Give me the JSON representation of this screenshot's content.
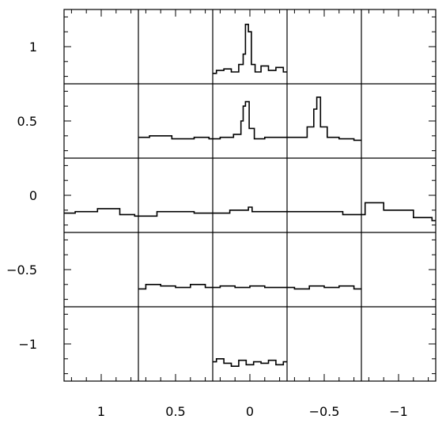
{
  "chart_data": {
    "type": "line",
    "title": "",
    "xlabel": "",
    "ylabel": "",
    "xlim": [
      1.25,
      -1.25
    ],
    "ylim": [
      -1.25,
      1.25
    ],
    "x_inverted": true,
    "x_ticks": [
      1,
      0.5,
      0,
      -0.5,
      -1
    ],
    "x_tick_labels": [
      "1",
      "0.5",
      "0",
      "−0.5",
      "−1"
    ],
    "y_ticks": [
      1,
      0.5,
      0,
      -0.5,
      -1
    ],
    "y_tick_labels": [
      "1",
      "0.5",
      "0",
      "−0.5",
      "−1"
    ],
    "grid": {
      "x_lines": [
        0.75,
        0.25,
        -0.25,
        -0.75
      ],
      "y_lines": [
        0.75,
        0.25,
        -0.25,
        -0.75
      ]
    },
    "series": [
      {
        "x": [
          0.25,
          0.2,
          0.15,
          0.1,
          0.05,
          0.04,
          0.02,
          0.0,
          -0.02,
          -0.05,
          -0.1,
          -0.15,
          -0.2,
          -0.25
        ],
        "y": [
          0.82,
          0.84,
          0.85,
          0.83,
          0.88,
          0.95,
          1.15,
          1.1,
          0.88,
          0.83,
          0.87,
          0.84,
          0.86,
          0.83
        ]
      },
      {
        "x": [
          0.75,
          0.6,
          0.45,
          0.3,
          0.25,
          0.15,
          0.07,
          0.05,
          0.04,
          0.02,
          -0.01,
          -0.05,
          -0.15,
          -0.35,
          -0.42,
          -0.44,
          -0.46,
          -0.49,
          -0.55,
          -0.65,
          -0.75
        ],
        "y": [
          0.39,
          0.4,
          0.38,
          0.39,
          0.38,
          0.39,
          0.41,
          0.5,
          0.6,
          0.63,
          0.45,
          0.38,
          0.39,
          0.39,
          0.46,
          0.58,
          0.66,
          0.46,
          0.39,
          0.38,
          0.37
        ]
      },
      {
        "x": [
          1.25,
          1.1,
          0.95,
          0.8,
          0.75,
          0.5,
          0.25,
          0.02,
          0.0,
          -0.03,
          -0.25,
          -0.5,
          -0.75,
          -0.8,
          -1.0,
          -1.2,
          -1.25
        ],
        "y": [
          -0.12,
          -0.11,
          -0.09,
          -0.13,
          -0.14,
          -0.11,
          -0.12,
          -0.1,
          -0.08,
          -0.11,
          -0.11,
          -0.11,
          -0.13,
          -0.05,
          -0.1,
          -0.15,
          -0.17
        ]
      },
      {
        "x": [
          0.75,
          0.65,
          0.55,
          0.45,
          0.35,
          0.25,
          0.15,
          0.05,
          -0.05,
          -0.15,
          -0.25,
          -0.35,
          -0.45,
          -0.55,
          -0.65,
          -0.75
        ],
        "y": [
          -0.63,
          -0.6,
          -0.61,
          -0.62,
          -0.6,
          -0.62,
          -0.61,
          -0.62,
          -0.61,
          -0.62,
          -0.62,
          -0.63,
          -0.61,
          -0.62,
          -0.61,
          -0.63
        ]
      },
      {
        "x": [
          0.25,
          0.2,
          0.15,
          0.1,
          0.05,
          0.0,
          -0.05,
          -0.1,
          -0.15,
          -0.2,
          -0.25
        ],
        "y": [
          -1.12,
          -1.1,
          -1.13,
          -1.15,
          -1.11,
          -1.14,
          -1.12,
          -1.13,
          -1.11,
          -1.14,
          -1.12
        ]
      }
    ]
  }
}
